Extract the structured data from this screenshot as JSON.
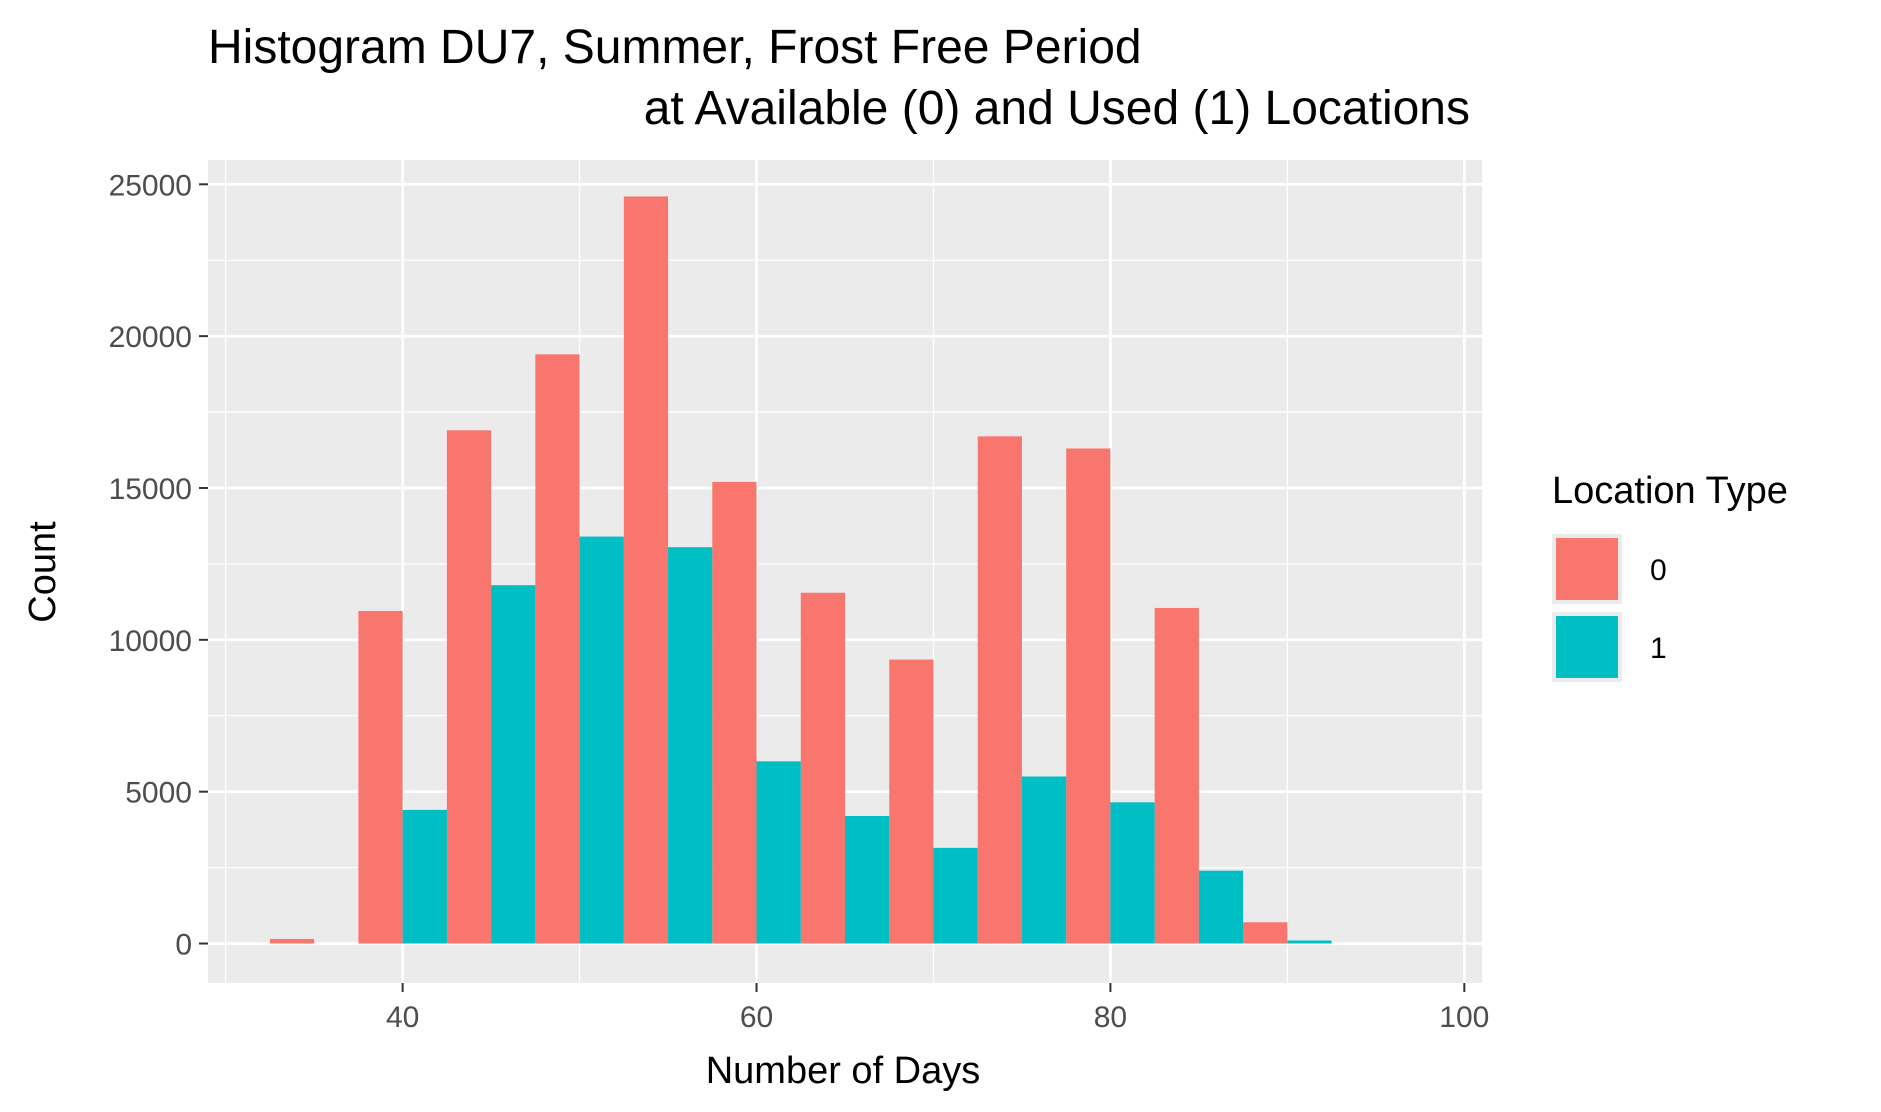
{
  "chart_data": {
    "type": "bar",
    "title": "Histogram DU7, Summer, Frost Free Period",
    "subtitle": "at Available (0) and Used (1) Locations",
    "xlabel": "Number of Days",
    "ylabel": "Count",
    "xlim": [
      29,
      101
    ],
    "ylim": [
      -1300,
      25800
    ],
    "x_ticks": [
      40,
      60,
      80,
      100
    ],
    "y_ticks": [
      0,
      5000,
      10000,
      15000,
      20000,
      25000
    ],
    "grid": true,
    "bin_width": 5,
    "legend": {
      "title": "Location Type",
      "position": "right"
    },
    "bins": [
      35,
      40,
      45,
      50,
      55,
      60,
      65,
      70,
      75,
      80,
      85,
      90,
      95
    ],
    "series": [
      {
        "name": "0",
        "color": "#F8766D",
        "values": [
          150,
          10950,
          16900,
          19400,
          24600,
          15200,
          11550,
          9350,
          16700,
          16300,
          11050,
          700,
          0
        ]
      },
      {
        "name": "1",
        "color": "#00BFC4",
        "values": [
          0,
          4400,
          11800,
          13400,
          13050,
          6000,
          4200,
          3150,
          5500,
          4650,
          2400,
          100,
          0
        ]
      }
    ],
    "colors": {
      "panel_background": "#EBEBEB",
      "grid_line": "#FFFFFF",
      "tick_text": "#4D4D4D"
    }
  }
}
